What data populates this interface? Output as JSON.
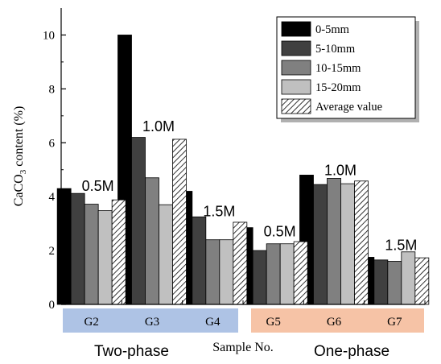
{
  "chart_data": {
    "type": "bar",
    "xlabel": "Sample No.",
    "ylabel_main": "CaCO",
    "ylabel_sub": "3",
    "ylabel_rest": " content (%)",
    "ylim": [
      0,
      11
    ],
    "yticks": [
      0,
      2,
      4,
      6,
      8,
      10
    ],
    "grid": false,
    "legend_position": "top-right",
    "categories": [
      "G2",
      "G3",
      "G4",
      "G5",
      "G6",
      "G7"
    ],
    "series": [
      {
        "name": "0-5mm",
        "color": "#000000",
        "pattern": "solid",
        "values": [
          4.3,
          10.0,
          4.2,
          2.85,
          4.8,
          1.75
        ]
      },
      {
        "name": "5-10mm",
        "color": "#404040",
        "pattern": "solid",
        "values": [
          4.12,
          6.2,
          3.25,
          2.0,
          4.45,
          1.65
        ]
      },
      {
        "name": "10-15mm",
        "color": "#808080",
        "pattern": "solid",
        "values": [
          3.72,
          4.7,
          2.4,
          2.25,
          4.68,
          1.6
        ]
      },
      {
        "name": "15-20mm",
        "color": "#c0c0c0",
        "pattern": "solid",
        "values": [
          3.48,
          3.7,
          2.4,
          2.25,
          4.48,
          1.95
        ]
      },
      {
        "name": "Average value",
        "color": "#ffffff",
        "pattern": "hatch",
        "values": [
          3.88,
          6.13,
          3.05,
          2.33,
          4.58,
          1.73
        ]
      }
    ],
    "group_labels": [
      "0.5M",
      "1.0M",
      "1.5M",
      "0.5M",
      "1.0M",
      "1.5M"
    ],
    "group_label_values": [
      4.1,
      6.3,
      3.15,
      2.4,
      4.68,
      1.9
    ],
    "phase_band_colors": [
      "#aec3e5",
      "#aec3e5",
      "#aec3e5",
      "#f6c3a6",
      "#f6c3a6",
      "#f6c3a6"
    ]
  },
  "phases": {
    "left": "Two-phase",
    "right": "One-phase"
  }
}
